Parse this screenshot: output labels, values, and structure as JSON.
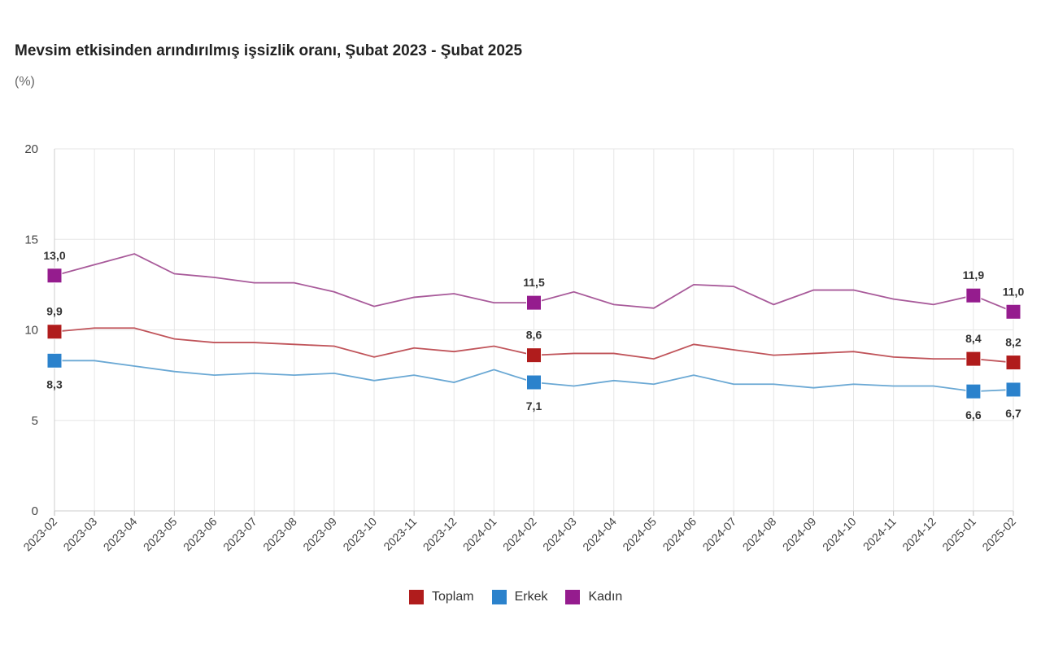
{
  "chart_data": {
    "type": "line",
    "title": "Mevsim etkisinden arındırılmış işsizlik oranı, Şubat 2023 - Şubat 2025",
    "unit": "(%)",
    "xlabel": "",
    "ylabel": "",
    "ylim": [
      0,
      20
    ],
    "yticks": [
      "0",
      "5",
      "10",
      "15",
      "20"
    ],
    "grid": true,
    "legend_position": "bottom-center",
    "categories": [
      "2023-02",
      "2023-03",
      "2023-04",
      "2023-05",
      "2023-06",
      "2023-07",
      "2023-08",
      "2023-09",
      "2023-10",
      "2023-11",
      "2023-12",
      "2024-01",
      "2024-02",
      "2024-03",
      "2024-04",
      "2024-05",
      "2024-06",
      "2024-07",
      "2024-08",
      "2024-09",
      "2024-10",
      "2024-11",
      "2024-12",
      "2025-01",
      "2025-02"
    ],
    "labeled_indices": [
      0,
      12,
      23,
      24
    ],
    "series": [
      {
        "name": "Toplam",
        "color": "#b01c1c",
        "line_color": "#c0545a",
        "label_pos": "above",
        "values": [
          9.9,
          10.1,
          10.1,
          9.5,
          9.3,
          9.3,
          9.2,
          9.1,
          8.5,
          9.0,
          8.8,
          9.1,
          8.6,
          8.7,
          8.7,
          8.4,
          9.2,
          8.9,
          8.6,
          8.7,
          8.8,
          8.5,
          8.4,
          8.4,
          8.2
        ],
        "labels": [
          "9,9",
          "8,6",
          "8,4",
          "8,2"
        ]
      },
      {
        "name": "Erkek",
        "color": "#2b82cc",
        "line_color": "#6aa8d4",
        "label_pos": "below",
        "values": [
          8.3,
          8.3,
          8.0,
          7.7,
          7.5,
          7.6,
          7.5,
          7.6,
          7.2,
          7.5,
          7.1,
          7.8,
          7.1,
          6.9,
          7.2,
          7.0,
          7.5,
          7.0,
          7.0,
          6.8,
          7.0,
          6.9,
          6.9,
          6.6,
          6.7
        ],
        "labels": [
          "8,3",
          "7,1",
          "6,6",
          "6,7"
        ]
      },
      {
        "name": "Kadın",
        "color": "#951c8e",
        "line_color": "#a85a9a",
        "label_pos": "above",
        "values": [
          13.0,
          13.6,
          14.2,
          13.1,
          12.9,
          12.6,
          12.6,
          12.1,
          11.3,
          11.8,
          12.0,
          11.5,
          11.5,
          12.1,
          11.4,
          11.2,
          12.5,
          12.4,
          11.4,
          12.2,
          12.2,
          11.7,
          11.4,
          11.9,
          11.0
        ],
        "labels": [
          "13,0",
          "11,5",
          "11,9",
          "11,0"
        ]
      }
    ]
  }
}
